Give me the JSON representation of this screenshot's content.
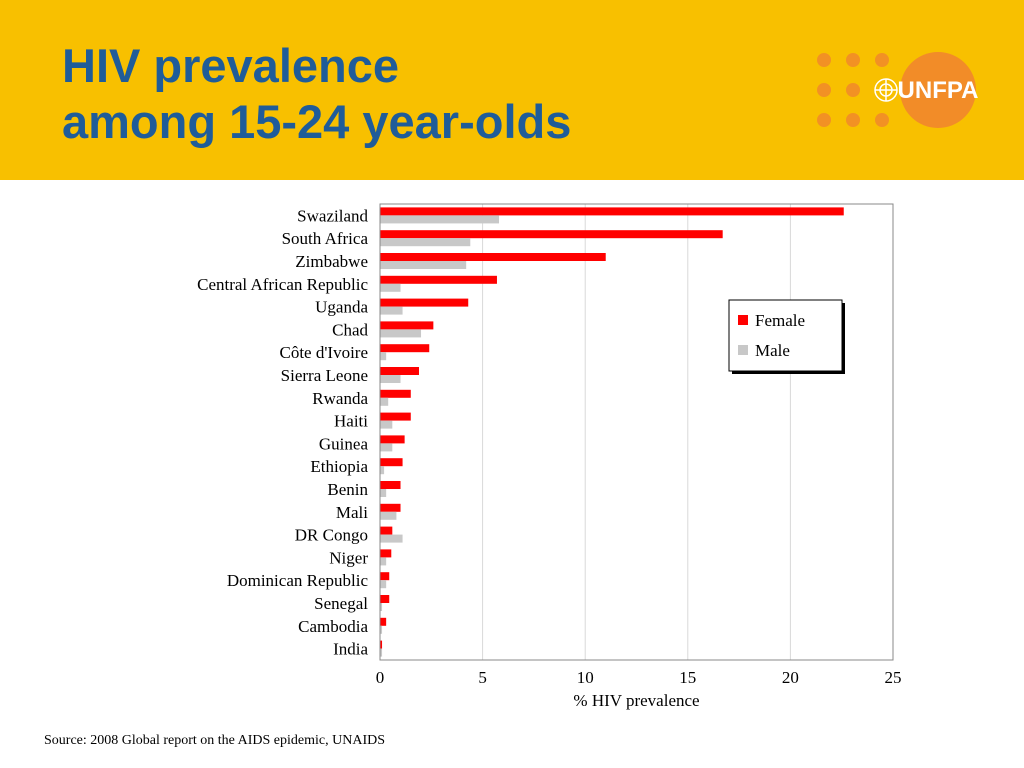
{
  "header": {
    "title_line1": "HIV prevalence",
    "title_line2": "among 15-24 year-olds",
    "background_color": "#F8C000",
    "title_color": "#1F5C99"
  },
  "logo": {
    "text": "UNFPA",
    "icon": "un-emblem-icon",
    "color": "#F28C28"
  },
  "chart_data": {
    "type": "bar",
    "orientation": "horizontal",
    "categories": [
      "Swaziland",
      "South Africa",
      "Zimbabwe",
      "Central African Republic",
      "Uganda",
      "Chad",
      "Côte d'Ivoire",
      "Sierra Leone",
      "Rwanda",
      "Haiti",
      "Guinea",
      "Ethiopia",
      "Benin",
      "Mali",
      "DR Congo",
      "Niger",
      "Dominican Republic",
      "Senegal",
      "Cambodia",
      "India"
    ],
    "series": [
      {
        "name": "Female",
        "color": "#FF0000",
        "values": [
          22.6,
          16.7,
          11.0,
          5.7,
          4.3,
          2.6,
          2.4,
          1.9,
          1.5,
          1.5,
          1.2,
          1.1,
          1.0,
          1.0,
          0.6,
          0.55,
          0.45,
          0.45,
          0.3,
          0.1
        ]
      },
      {
        "name": "Male",
        "color": "#C8C8C8",
        "values": [
          5.8,
          4.4,
          4.2,
          1.0,
          1.1,
          2.0,
          0.3,
          1.0,
          0.4,
          0.6,
          0.6,
          0.2,
          0.3,
          0.8,
          1.1,
          0.3,
          0.3,
          0.1,
          0.1,
          0.1
        ]
      }
    ],
    "xlabel": "% HIV prevalence",
    "ylabel": "",
    "xlim": [
      0,
      25
    ],
    "xticks": [
      0,
      5,
      10,
      15,
      20,
      25
    ],
    "grid": "vertical",
    "legend_position": "right"
  },
  "source": "Source: 2008 Global report on the AIDS epidemic, UNAIDS"
}
